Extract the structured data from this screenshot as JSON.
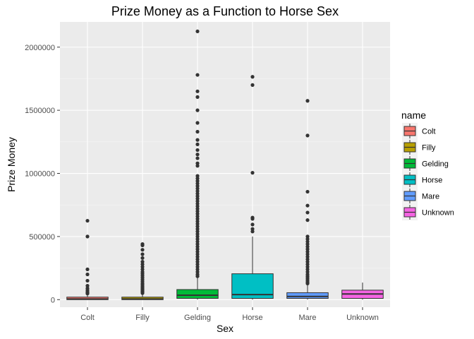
{
  "chart_data": {
    "type": "box",
    "title": "Prize Money as a Function to Horse Sex",
    "xlabel": "Sex",
    "ylabel": "Prize Money",
    "ylim": [
      -60000,
      2200000
    ],
    "yticks": [
      0,
      500000,
      1000000,
      1500000,
      2000000
    ],
    "ytick_labels": [
      "0",
      "500000",
      "1000000",
      "1500000",
      "2000000"
    ],
    "grid": true,
    "legend": {
      "title": "name",
      "position": "right"
    },
    "categories": [
      "Colt",
      "Filly",
      "Gelding",
      "Horse",
      "Mare",
      "Unknown"
    ],
    "series": [
      {
        "name": "Colt",
        "color": "#F8766D",
        "whisker_low": 0,
        "q1": 0,
        "median": 5000,
        "q3": 20000,
        "whisker_high": 45000,
        "outliers": [
          625000,
          500000,
          240000,
          200000,
          150000,
          110000,
          90000,
          75000,
          62000,
          55000,
          48000
        ]
      },
      {
        "name": "Filly",
        "color": "#B79F00",
        "whisker_low": 0,
        "q1": 0,
        "median": 5000,
        "q3": 20000,
        "whisker_high": 45000,
        "outliers": [
          440000,
          430000,
          395000,
          360000,
          330000,
          300000,
          280000,
          260000,
          240000,
          220000,
          205000,
          190000,
          175000,
          160000,
          145000,
          130000,
          118000,
          105000,
          95000,
          85000,
          75000,
          68000,
          60000,
          52000
        ]
      },
      {
        "name": "Gelding",
        "color": "#00BA38",
        "whisker_low": 0,
        "q1": 10000,
        "median": 35000,
        "q3": 80000,
        "whisker_high": 180000,
        "outliers": [
          2125000,
          1780000,
          1650000,
          1605000,
          1500000,
          1400000,
          1330000,
          1265000,
          1230000,
          1185000,
          1150000,
          1120000,
          1080000,
          1060000,
          980000,
          960000,
          940000,
          920000,
          900000,
          880000,
          860000,
          840000,
          820000,
          800000,
          780000,
          760000,
          740000,
          720000,
          700000,
          680000,
          660000,
          640000,
          620000,
          600000,
          580000,
          560000,
          540000,
          520000,
          500000,
          480000,
          460000,
          440000,
          420000,
          400000,
          380000,
          360000,
          340000,
          320000,
          300000,
          280000,
          260000,
          240000,
          220000,
          200000,
          185000
        ]
      },
      {
        "name": "Horse",
        "color": "#00BFC4",
        "whisker_low": 0,
        "q1": 10000,
        "median": 40000,
        "q3": 205000,
        "whisker_high": 500000,
        "outliers": [
          1765000,
          1700000,
          1005000,
          650000,
          640000,
          595000,
          560000,
          540000
        ]
      },
      {
        "name": "Mare",
        "color": "#619CFF",
        "whisker_low": 0,
        "q1": 10000,
        "median": 25000,
        "q3": 55000,
        "whisker_high": 120000,
        "outliers": [
          1575000,
          1300000,
          855000,
          745000,
          690000,
          630000,
          500000,
          480000,
          460000,
          440000,
          420000,
          400000,
          380000,
          360000,
          340000,
          320000,
          300000,
          280000,
          260000,
          240000,
          220000,
          200000,
          185000,
          170000,
          155000,
          140000,
          128000
        ]
      },
      {
        "name": "Unknown",
        "color": "#F564E3",
        "whisker_low": 0,
        "q1": 10000,
        "median": 45000,
        "q3": 75000,
        "whisker_high": 135000,
        "outliers": []
      }
    ]
  }
}
